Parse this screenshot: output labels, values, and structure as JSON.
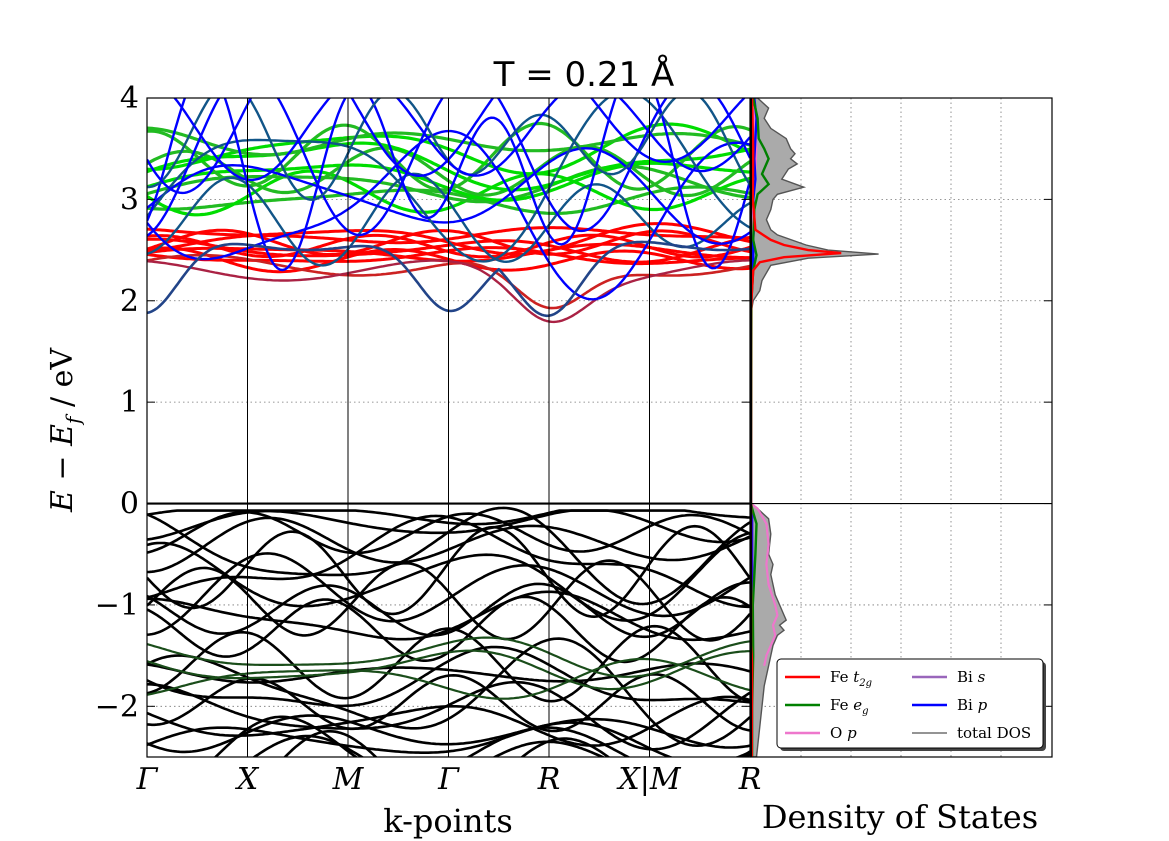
{
  "chart_data": [
    {
      "type": "line",
      "title": "T = 0.21 Å",
      "ylabel": "E − E_f   /  eV",
      "xlabel": "k-points",
      "ylim": [
        -2.5,
        4
      ],
      "yticks": [
        "−2",
        "−1",
        "0",
        "1",
        "2",
        "3",
        "4"
      ],
      "ytick_values": [
        -2,
        -1,
        0,
        1,
        2,
        3,
        4
      ],
      "kpoints": [
        "Γ",
        "X",
        "M",
        "Γ",
        "R",
        "X|M",
        "R"
      ],
      "grid": true,
      "colors": {
        "Fe_t2g": "#ff0000",
        "Fe_eg": "#008000",
        "Fe_eg_light": "#00dd00",
        "Bi_p": "#0000ff",
        "valence": "#000000"
      },
      "conduction_band_notes": {
        "Fe_t2g_range": [
          2.35,
          2.7
        ],
        "Fe_eg_range": [
          3.0,
          3.6
        ],
        "Bi_p_min": 1.88
      }
    },
    {
      "type": "area",
      "xlabel": "Density of States",
      "ylim": [
        -2.5,
        4
      ],
      "grid": true,
      "legend_placement": "lower-right",
      "legend": [
        {
          "label": "Fe t_{2g}",
          "text": "Fe ",
          "sub": "t",
          "subsub": "2g",
          "color": "#ff0000"
        },
        {
          "label": "Fe e_g",
          "text": "Fe ",
          "sub": "e",
          "subsub": "g",
          "color": "#008000"
        },
        {
          "label": "O p",
          "text": "O ",
          "sub": "p",
          "subsub": "",
          "color": "#ee77cc"
        },
        {
          "label": "Bi s",
          "text": "Bi ",
          "sub": "s",
          "subsub": "",
          "color": "#9966bb"
        },
        {
          "label": "Bi p",
          "text": "Bi ",
          "sub": "p",
          "subsub": "",
          "color": "#0000ff"
        },
        {
          "label": "total DOS",
          "text": "total DOS",
          "sub": "",
          "subsub": "",
          "color": "#555555"
        }
      ],
      "total_dos": [
        [
          4.0,
          0.3
        ],
        [
          3.9,
          0.8
        ],
        [
          3.8,
          0.6
        ],
        [
          3.7,
          0.9
        ],
        [
          3.6,
          1.6
        ],
        [
          3.5,
          1.8
        ],
        [
          3.45,
          2.0
        ],
        [
          3.4,
          1.8
        ],
        [
          3.35,
          2.1
        ],
        [
          3.3,
          1.7
        ],
        [
          3.2,
          1.4
        ],
        [
          3.12,
          2.4
        ],
        [
          3.05,
          1.2
        ],
        [
          3.0,
          1.0
        ],
        [
          2.9,
          0.9
        ],
        [
          2.8,
          0.7
        ],
        [
          2.7,
          0.9
        ],
        [
          2.65,
          1.2
        ],
        [
          2.55,
          2.5
        ],
        [
          2.5,
          3.5
        ],
        [
          2.46,
          5.8
        ],
        [
          2.42,
          2.6
        ],
        [
          2.35,
          0.9
        ],
        [
          2.2,
          0.5
        ],
        [
          2.1,
          0.4
        ],
        [
          2.0,
          0.1
        ],
        [
          1.9,
          0.02
        ],
        [
          1.0,
          0
        ],
        [
          0.0,
          0
        ],
        [
          -0.05,
          0.3
        ],
        [
          -0.15,
          0.8
        ],
        [
          -0.3,
          0.9
        ],
        [
          -0.5,
          0.8
        ],
        [
          -0.6,
          1.0
        ],
        [
          -0.7,
          0.9
        ],
        [
          -0.8,
          1.0
        ],
        [
          -0.9,
          1.1
        ],
        [
          -1.0,
          1.3
        ],
        [
          -1.1,
          1.5
        ],
        [
          -1.15,
          1.6
        ],
        [
          -1.2,
          1.3
        ],
        [
          -1.25,
          1.5
        ],
        [
          -1.3,
          1.2
        ],
        [
          -1.4,
          1.0
        ],
        [
          -1.5,
          0.9
        ],
        [
          -1.6,
          0.8
        ],
        [
          -1.8,
          0.6
        ],
        [
          -2.0,
          0.5
        ],
        [
          -2.2,
          0.4
        ],
        [
          -2.4,
          0.3
        ],
        [
          -2.5,
          0.25
        ]
      ],
      "fe_t2g": [
        [
          4.0,
          0.05
        ],
        [
          3.5,
          0.1
        ],
        [
          3.0,
          0.08
        ],
        [
          2.7,
          0.2
        ],
        [
          2.6,
          0.9
        ],
        [
          2.55,
          1.5
        ],
        [
          2.5,
          2.6
        ],
        [
          2.47,
          4.1
        ],
        [
          2.43,
          1.5
        ],
        [
          2.38,
          0.4
        ],
        [
          2.3,
          0.1
        ],
        [
          2.0,
          0.02
        ],
        [
          1.9,
          0
        ],
        [
          -1.4,
          0
        ],
        [
          -1.5,
          0.03
        ],
        [
          -1.6,
          0.05
        ],
        [
          -2.5,
          0.03
        ]
      ],
      "fe_eg": [
        [
          4.0,
          0.1
        ],
        [
          3.8,
          0.3
        ],
        [
          3.6,
          0.35
        ],
        [
          3.5,
          0.6
        ],
        [
          3.4,
          0.8
        ],
        [
          3.35,
          0.7
        ],
        [
          3.25,
          0.5
        ],
        [
          3.15,
          0.8
        ],
        [
          3.05,
          0.3
        ],
        [
          2.9,
          0.15
        ],
        [
          2.6,
          0.1
        ],
        [
          2.45,
          0.25
        ],
        [
          2.3,
          0.1
        ],
        [
          2.0,
          0.02
        ],
        [
          0.0,
          0
        ],
        [
          -0.05,
          0.05
        ],
        [
          -0.2,
          0.25
        ],
        [
          -0.5,
          0.2
        ],
        [
          -1.0,
          0.08
        ],
        [
          -1.5,
          0.1
        ],
        [
          -2.0,
          0.05
        ],
        [
          -2.5,
          0.05
        ]
      ],
      "o_p": [
        [
          4.0,
          0.1
        ],
        [
          3.7,
          0.2
        ],
        [
          3.5,
          0.25
        ],
        [
          3.3,
          0.2
        ],
        [
          3.0,
          0.1
        ],
        [
          2.5,
          0.05
        ],
        [
          2.0,
          0.0
        ],
        [
          0.0,
          0
        ],
        [
          -0.05,
          0.3
        ],
        [
          -0.2,
          0.7
        ],
        [
          -0.4,
          0.8
        ],
        [
          -0.6,
          0.7
        ],
        [
          -0.8,
          0.8
        ],
        [
          -1.0,
          1.1
        ],
        [
          -1.1,
          1.2
        ],
        [
          -1.2,
          1.0
        ],
        [
          -1.3,
          1.1
        ],
        [
          -1.4,
          0.9
        ],
        [
          -1.5,
          0.7
        ],
        [
          -1.6,
          0.6
        ]
      ],
      "bi_p": [
        [
          4.0,
          0.15
        ],
        [
          3.8,
          0.25
        ],
        [
          3.6,
          0.2
        ],
        [
          3.4,
          0.15
        ],
        [
          3.2,
          0.2
        ],
        [
          3.0,
          0.1
        ],
        [
          2.8,
          0.15
        ],
        [
          2.6,
          0.1
        ],
        [
          2.4,
          0.1
        ],
        [
          2.2,
          0.05
        ],
        [
          2.0,
          0.02
        ],
        [
          1.9,
          0
        ],
        [
          0.0,
          0
        ],
        [
          -0.1,
          0.05
        ],
        [
          -1.0,
          0.05
        ],
        [
          -2.0,
          0.03
        ],
        [
          -2.5,
          0.03
        ]
      ]
    }
  ]
}
